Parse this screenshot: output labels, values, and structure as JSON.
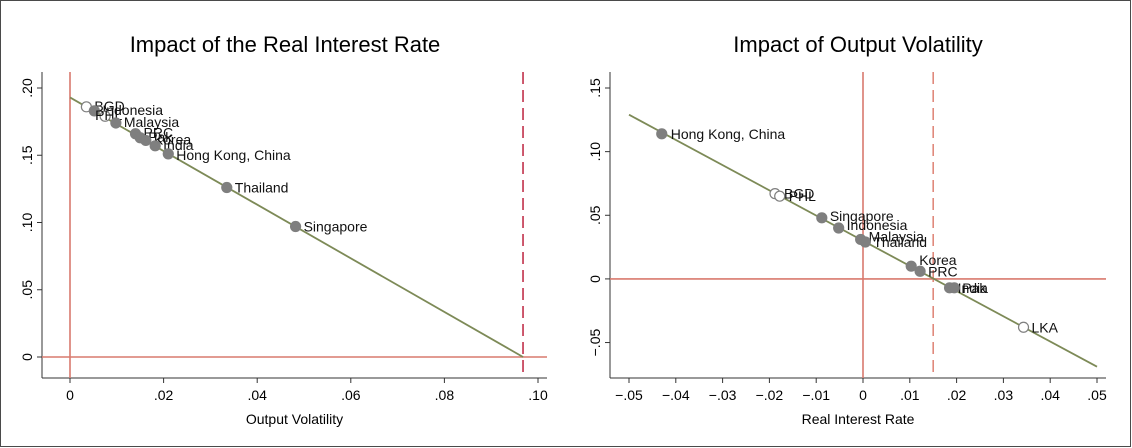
{
  "chart_data": [
    {
      "type": "scatter",
      "title": "Impact of the Real Interest Rate",
      "xlabel": "Output Volatility",
      "ylabel": "",
      "xlim": [
        0,
        0.1
      ],
      "ylim": [
        0,
        0.2
      ],
      "xticks": [
        "0",
        ".02",
        ".04",
        ".06",
        ".08",
        ".10"
      ],
      "yticks": [
        "0",
        ".05",
        ".10",
        ".15",
        ".20"
      ],
      "fit_line": {
        "x": [
          0,
          0.0968
        ],
        "y": [
          0.193,
          0
        ]
      },
      "reference_lines": [
        {
          "orientation": "vertical",
          "value": 0,
          "style": "solid"
        },
        {
          "orientation": "horizontal",
          "value": 0,
          "style": "solid"
        },
        {
          "orientation": "vertical",
          "value": 0.0968,
          "style": "dashed"
        }
      ],
      "points": [
        {
          "label": "BGD",
          "x": 0.0035,
          "y": 0.186,
          "filled": false
        },
        {
          "label": "Indonesia",
          "x": 0.0052,
          "y": 0.183,
          "filled": true
        },
        {
          "label": "PHL",
          "x": 0.0075,
          "y": 0.179,
          "filled": false
        },
        {
          "label": "Malaysia",
          "x": 0.0098,
          "y": 0.174,
          "filled": true
        },
        {
          "label": "PRC",
          "x": 0.014,
          "y": 0.166,
          "filled": true
        },
        {
          "label": "Pak",
          "x": 0.015,
          "y": 0.163,
          "filled": true
        },
        {
          "label": "Korea",
          "x": 0.0162,
          "y": 0.161,
          "filled": true
        },
        {
          "label": "India",
          "x": 0.0182,
          "y": 0.157,
          "filled": true
        },
        {
          "label": "Hong Kong, China",
          "x": 0.021,
          "y": 0.151,
          "filled": true
        },
        {
          "label": "Thailand",
          "x": 0.0335,
          "y": 0.126,
          "filled": true
        },
        {
          "label": "Singapore",
          "x": 0.0482,
          "y": 0.097,
          "filled": true
        }
      ]
    },
    {
      "type": "scatter",
      "title": "Impact of Output Volatility",
      "xlabel": "Real Interest Rate",
      "ylabel": "",
      "xlim": [
        -0.05,
        0.05
      ],
      "ylim": [
        -0.07,
        0.15
      ],
      "xticks": [
        "−.05",
        "−.04",
        "−.03",
        "−.02",
        "−.01",
        "0",
        ".01",
        ".02",
        ".03",
        ".04",
        ".05"
      ],
      "yticks": [
        "−.05",
        "0",
        ".05",
        ".10",
        ".15"
      ],
      "fit_line": {
        "x": [
          -0.05,
          0.05
        ],
        "y": [
          0.129,
          -0.069
        ]
      },
      "reference_lines": [
        {
          "orientation": "vertical",
          "value": 0,
          "style": "solid"
        },
        {
          "orientation": "horizontal",
          "value": 0,
          "style": "solid"
        },
        {
          "orientation": "vertical",
          "value": 0.015,
          "style": "dashed"
        }
      ],
      "points": [
        {
          "label": "Hong Kong, China",
          "x": -0.043,
          "y": 0.114,
          "filled": true
        },
        {
          "label": "BGD",
          "x": -0.0188,
          "y": 0.067,
          "filled": false
        },
        {
          "label": "PHL",
          "x": -0.0178,
          "y": 0.065,
          "filled": false
        },
        {
          "label": "Singapore",
          "x": -0.0088,
          "y": 0.048,
          "filled": true
        },
        {
          "label": "Indonesia",
          "x": -0.0052,
          "y": 0.04,
          "filled": true
        },
        {
          "label": "Malaysia",
          "x": -0.0005,
          "y": 0.031,
          "filled": true
        },
        {
          "label": "Thailand",
          "x": 0.0005,
          "y": 0.029,
          "filled": true
        },
        {
          "label": "Korea",
          "x": 0.0103,
          "y": 0.01,
          "filled": true
        },
        {
          "label": "PRC",
          "x": 0.0122,
          "y": 0.006,
          "filled": true
        },
        {
          "label": "India",
          "x": 0.0185,
          "y": -0.007,
          "filled": true
        },
        {
          "label": "Pak",
          "x": 0.0195,
          "y": -0.007,
          "filled": true
        },
        {
          "label": "LKA",
          "x": 0.0343,
          "y": -0.038,
          "filled": false
        }
      ]
    }
  ],
  "colors": {
    "fit_line": "#7d8a57",
    "reference": "#d97a6e",
    "dashed_reference_left": "#c1304a",
    "dashed_reference_right": "#e0897c",
    "marker": "#7f7f7f",
    "axis": "#333333"
  }
}
